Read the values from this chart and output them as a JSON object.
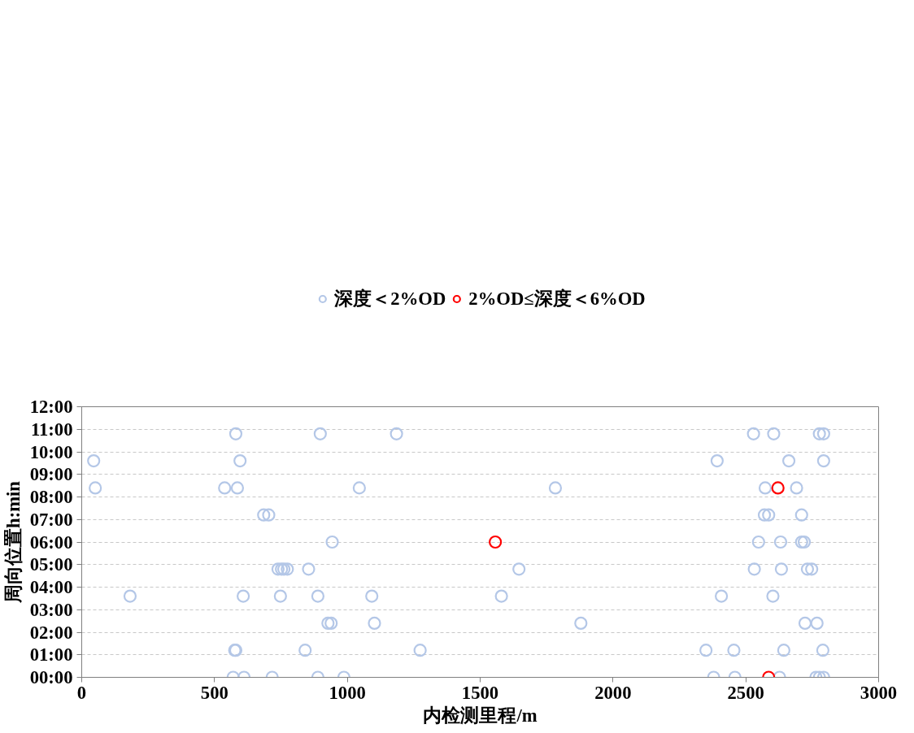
{
  "chart_data": {
    "type": "scatter",
    "xlabel": "内检测里程/m",
    "ylabel": "周向位置h:min",
    "xlim": [
      0,
      3000
    ],
    "xticks": [
      0,
      500,
      1000,
      1500,
      2000,
      2500,
      3000
    ],
    "ylim": [
      0,
      12
    ],
    "yticks": [
      {
        "value": 0,
        "label": "00:00"
      },
      {
        "value": 1,
        "label": "01:00"
      },
      {
        "value": 2,
        "label": "02:00"
      },
      {
        "value": 3,
        "label": "03:00"
      },
      {
        "value": 4,
        "label": "04:00"
      },
      {
        "value": 5,
        "label": "05:00"
      },
      {
        "value": 6,
        "label": "06:00"
      },
      {
        "value": 7,
        "label": "07:00"
      },
      {
        "value": 8,
        "label": "08:00"
      },
      {
        "value": 9,
        "label": "09:00"
      },
      {
        "value": 10,
        "label": "10:00"
      },
      {
        "value": 11,
        "label": "11:00"
      },
      {
        "value": 12,
        "label": "12:00"
      }
    ],
    "grid": "y",
    "legend": "top",
    "marker": "circle",
    "series": [
      {
        "name": "深度＜2%OD",
        "color": "#b4c7e7",
        "x": [
          580,
          898,
          1185,
          2529,
          2605,
          2777,
          2793,
          45,
          596,
          2392,
          2662,
          2793,
          51,
          538,
          586,
          1045,
          1783,
          2573,
          2691,
          685,
          704,
          2570,
          2586,
          2710,
          943,
          2548,
          2631,
          2710,
          2720,
          739,
          752,
          761,
          774,
          854,
          1646,
          2532,
          2634,
          2732,
          2748,
          182,
          608,
          748,
          889,
          1092,
          1580,
          2408,
          2602,
          927,
          939,
          1102,
          1879,
          2723,
          2768,
          576,
          580,
          841,
          1274,
          2350,
          2455,
          2643,
          2790,
          570,
          611,
          717,
          889,
          987,
          2379,
          2459,
          2627,
          2764,
          2777,
          2793
        ],
        "values": [
          10.8,
          10.8,
          10.8,
          10.8,
          10.8,
          10.8,
          10.8,
          9.6,
          9.6,
          9.6,
          9.6,
          9.6,
          8.4,
          8.4,
          8.4,
          8.4,
          8.4,
          8.4,
          8.4,
          7.2,
          7.2,
          7.2,
          7.2,
          7.2,
          6.0,
          6.0,
          6.0,
          6.0,
          6.0,
          4.8,
          4.8,
          4.8,
          4.8,
          4.8,
          4.8,
          4.8,
          4.8,
          4.8,
          4.8,
          3.6,
          3.6,
          3.6,
          3.6,
          3.6,
          3.6,
          3.6,
          3.6,
          2.4,
          2.4,
          2.4,
          2.4,
          2.4,
          2.4,
          1.2,
          1.2,
          1.2,
          1.2,
          1.2,
          1.2,
          1.2,
          1.2,
          0,
          0,
          0,
          0,
          0,
          0,
          0,
          0,
          0,
          0,
          0
        ]
      },
      {
        "name": "2%OD≤深度＜6%OD",
        "color": "#ff0000",
        "x": [
          2621,
          1557,
          2586
        ],
        "values": [
          8.4,
          6.0,
          0
        ]
      }
    ]
  }
}
